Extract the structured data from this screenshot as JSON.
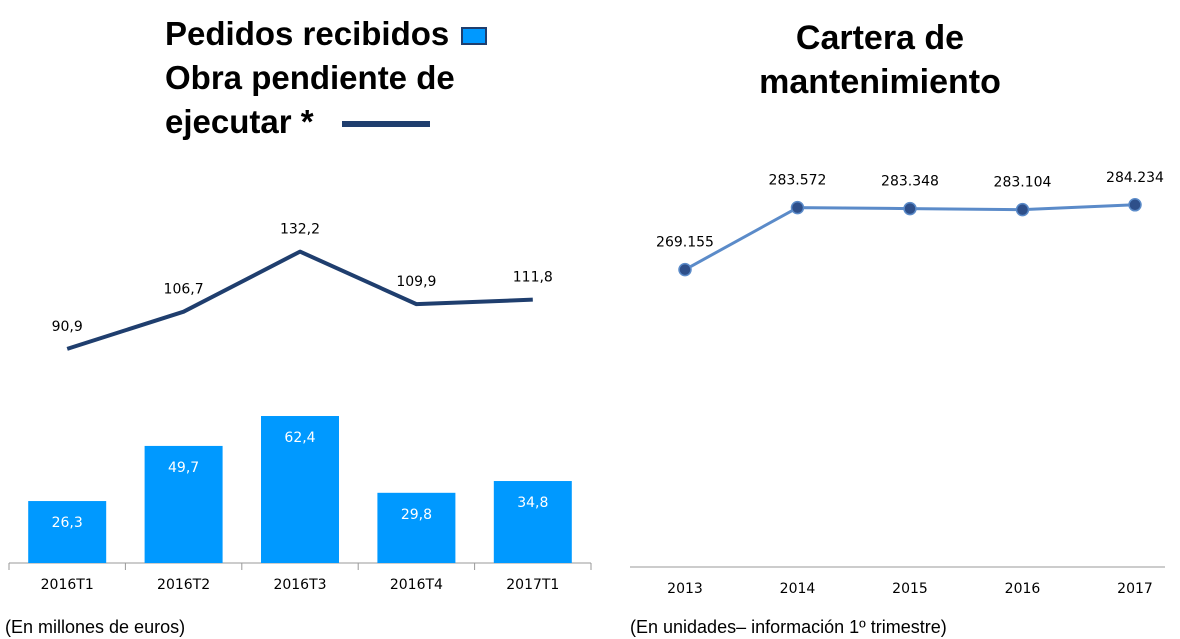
{
  "chart_data": [
    {
      "type": "bar_line",
      "categories": [
        "2016T1",
        "2016T2",
        "2016T3",
        "2016T4",
        "2017T1"
      ],
      "series": [
        {
          "name": "Pedidos recibidos",
          "type": "bar",
          "color": "#0099ff",
          "values": [
            26.3,
            49.7,
            62.4,
            29.8,
            34.8
          ],
          "value_labels": [
            "26,3",
            "49,7",
            "62,4",
            "29,8",
            "34,8"
          ]
        },
        {
          "name": "Obra pendiente de ejecutar *",
          "type": "line",
          "color": "#1f3e6e",
          "values": [
            90.9,
            106.7,
            132.2,
            109.9,
            111.8
          ],
          "value_labels": [
            "90,9",
            "106,7",
            "132,2",
            "109,9",
            "111,8"
          ]
        }
      ],
      "ylim": [
        0,
        180
      ],
      "note": "(En millones de euros)"
    },
    {
      "type": "line",
      "title": "Cartera de mantenimiento",
      "categories": [
        "2013",
        "2014",
        "2015",
        "2016",
        "2017"
      ],
      "series": [
        {
          "type": "line",
          "color": "#5b8bc9",
          "marker_color": "#2e4f8a",
          "values": [
            269155,
            283572,
            283348,
            283104,
            284234
          ],
          "value_labels": [
            "269.155",
            "283.572",
            "283.348",
            "283.104",
            "284.234"
          ]
        }
      ],
      "ylim": [
        200000,
        300000
      ],
      "note": "(En unidades– información 1º trimestre)"
    }
  ]
}
